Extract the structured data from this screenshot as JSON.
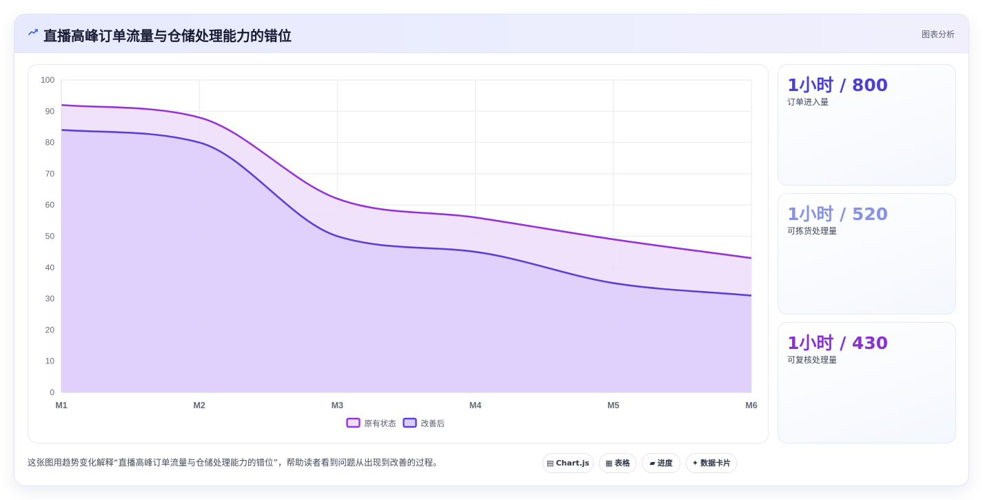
{
  "header": {
    "title": "直播高峰订单流量与仓储处理能力的错位",
    "right_label": "图表分析",
    "icon": "trend-icon"
  },
  "stats": [
    {
      "value": "1小时 / 800",
      "label": "订单进入量",
      "color": "#4b3fd6"
    },
    {
      "value": "1小时 / 520",
      "label": "可拣货处理量",
      "color": "#8792e6"
    },
    {
      "value": "1小时 / 430",
      "label": "可复核处理量",
      "color": "#8a30d6"
    }
  ],
  "footer": {
    "description": "这张图用趋势变化解释“直播高峰订单流量与仓储处理能力的错位”，帮助读者看到问题从出现到改善的过程。",
    "chips": [
      {
        "icon": "▤",
        "icon_name": "chart-icon",
        "label": "Chart.js"
      },
      {
        "icon": "▦",
        "icon_name": "table-icon",
        "label": "表格"
      },
      {
        "icon": "▰",
        "icon_name": "progress-icon",
        "label": "进度"
      },
      {
        "icon": "✦",
        "icon_name": "sparkle-icon",
        "label": "数据卡片"
      }
    ]
  },
  "chart_data": {
    "type": "area",
    "categories": [
      "M1",
      "M2",
      "M3",
      "M4",
      "M5",
      "M6"
    ],
    "series": [
      {
        "name": "原有状态",
        "values": [
          92,
          88,
          62,
          56,
          49,
          43
        ],
        "color": "#9333d9",
        "fill": "#eddffa"
      },
      {
        "name": "改善后",
        "values": [
          84,
          80,
          50,
          45,
          35,
          31
        ],
        "color": "#5b3fd8",
        "fill": "#dccefa"
      }
    ],
    "ylim": [
      0,
      100
    ],
    "yticks": [
      0,
      10,
      20,
      30,
      40,
      50,
      60,
      70,
      80,
      90,
      100
    ],
    "grid": true,
    "legend_position": "bottom"
  }
}
